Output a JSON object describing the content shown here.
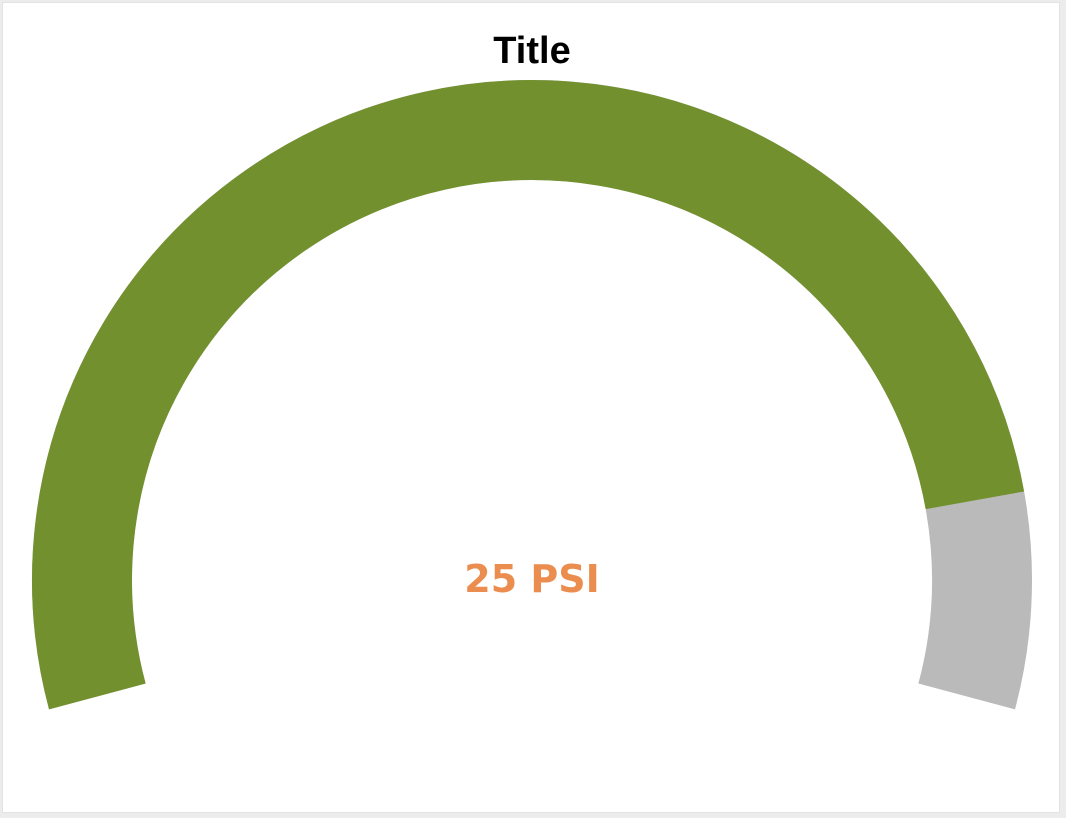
{
  "chart_data": {
    "type": "gauge",
    "title": "Title",
    "value": 25,
    "unit": "PSI",
    "value_label": "25 PSI",
    "fill_fraction": 0.88,
    "colors": {
      "filled": "#72912e",
      "track": "#bababa",
      "value_text": "#ec8d50",
      "title_text": "#000000"
    }
  }
}
